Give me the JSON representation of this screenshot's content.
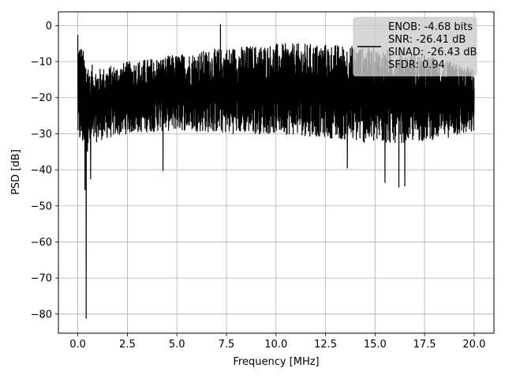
{
  "chart_data": {
    "type": "line",
    "title": "",
    "xlabel": "Frequency [MHz]",
    "ylabel": "PSD [dB]",
    "xlim": [
      -0.98,
      21.0
    ],
    "ylim": [
      -85.3,
      3.8
    ],
    "xticks": [
      0.0,
      2.5,
      5.0,
      7.5,
      10.0,
      12.5,
      15.0,
      17.5,
      20.0
    ],
    "xtick_labels": [
      "0.0",
      "2.5",
      "5.0",
      "7.5",
      "10.0",
      "12.5",
      "15.0",
      "17.5",
      "20.0"
    ],
    "yticks": [
      0,
      -10,
      -20,
      -30,
      -40,
      -50,
      -60,
      -70,
      -80
    ],
    "ytick_labels": [
      "0",
      "−10",
      "−20",
      "−30",
      "−40",
      "−50",
      "−60",
      "−70",
      "−80"
    ],
    "grid": true,
    "legend_position": "top-right",
    "series": [
      {
        "name": "ENOB: -4.68 bits\nSNR: -26.41 dB\nSINAD: -26.43 dB\nSFDR: 0.94",
        "color": "#000000",
        "x_range": [
          0.0,
          20.0
        ],
        "noise_floor_envelope": {
          "x": [
            0.0,
            0.5,
            1.0,
            2.5,
            5.0,
            7.5,
            10.0,
            12.5,
            15.0,
            17.5,
            20.0
          ],
          "upper": [
            -3,
            -10,
            -12,
            -10,
            -8,
            -6,
            -5,
            -5,
            -6,
            -8,
            -12
          ],
          "lower": [
            -33,
            -35,
            -32,
            -30,
            -29,
            -30,
            -30,
            -31,
            -33,
            -32,
            -30
          ]
        },
        "notable_points": [
          {
            "x": 0.0,
            "y": -2.6
          },
          {
            "x": 0.36,
            "y": -45.5
          },
          {
            "x": 0.42,
            "y": -81.2
          },
          {
            "x": 0.65,
            "y": -42.5
          },
          {
            "x": 4.3,
            "y": -40.2
          },
          {
            "x": 7.2,
            "y": 0.3
          },
          {
            "x": 13.6,
            "y": -39.5
          },
          {
            "x": 15.5,
            "y": -43.5
          },
          {
            "x": 16.2,
            "y": -44.8
          },
          {
            "x": 16.5,
            "y": -44.5
          }
        ]
      }
    ]
  }
}
